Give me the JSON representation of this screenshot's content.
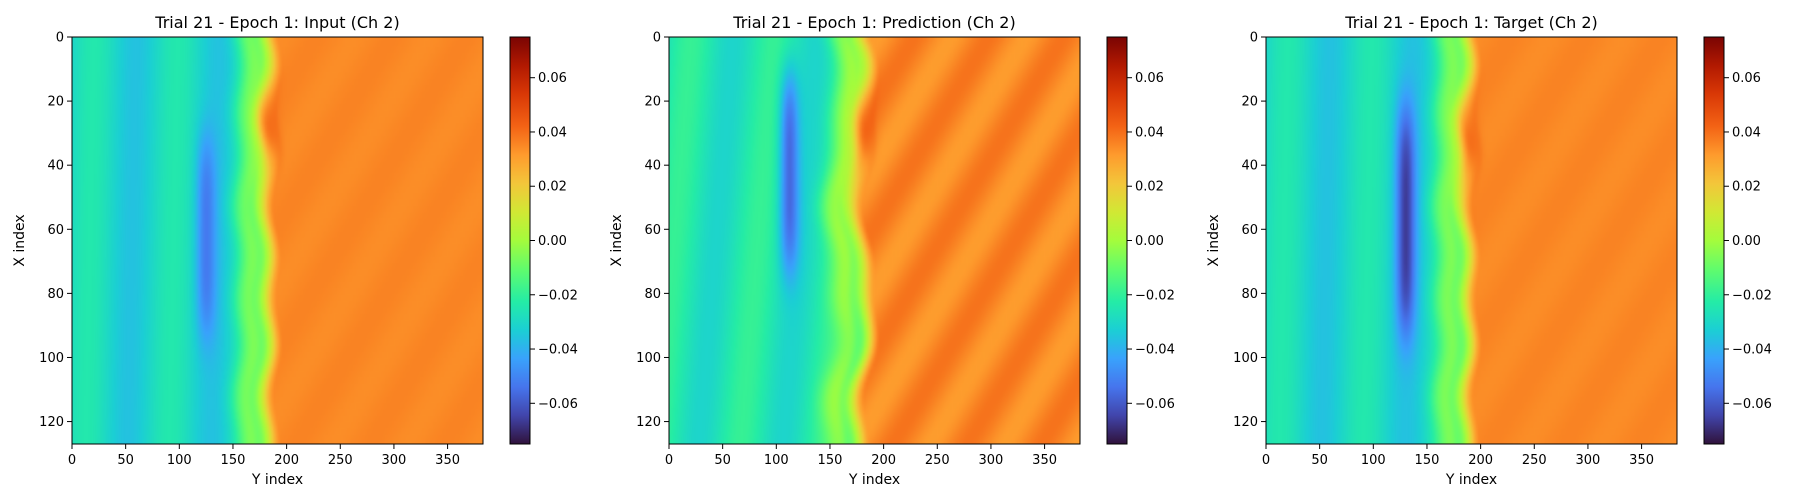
{
  "chart_data": [
    {
      "type": "heatmap",
      "title": "Trial 21 - Epoch 1: Input (Ch 2)",
      "xlabel": "Y index",
      "ylabel": "X index",
      "xlim": [
        0,
        383
      ],
      "ylim": [
        127,
        0
      ],
      "x_ticks": [
        0,
        50,
        100,
        150,
        200,
        250,
        300,
        350
      ],
      "y_ticks": [
        0,
        20,
        40,
        60,
        80,
        100,
        120
      ],
      "colormap": "turbo",
      "colorbar": {
        "range": [
          -0.075,
          0.075
        ],
        "ticks": [
          "0.06",
          "0.04",
          "0.02",
          "0.00",
          "−0.02",
          "−0.04",
          "−0.06"
        ],
        "tick_values": [
          0.06,
          0.04,
          0.02,
          0.0,
          -0.02,
          -0.04,
          -0.06
        ]
      },
      "field": {
        "front_y": 175,
        "left_value": -0.03,
        "right_value": 0.035,
        "peak_value": 0.065,
        "peak_x": 28,
        "trough_value": -0.055,
        "trough_y": 125,
        "trough_x_span": [
          30,
          95
        ],
        "waviness": 0.25
      }
    },
    {
      "type": "heatmap",
      "title": "Trial 21 - Epoch 1: Prediction (Ch 2)",
      "xlabel": "Y index",
      "ylabel": "X index",
      "xlim": [
        0,
        383
      ],
      "ylim": [
        127,
        0
      ],
      "x_ticks": [
        0,
        50,
        100,
        150,
        200,
        250,
        300,
        350
      ],
      "y_ticks": [
        0,
        20,
        40,
        60,
        80,
        100,
        120
      ],
      "colormap": "turbo",
      "colorbar": {
        "range": [
          -0.075,
          0.075
        ],
        "ticks": [
          "0.06",
          "0.04",
          "0.02",
          "0.00",
          "−0.02",
          "−0.04",
          "−0.06"
        ],
        "tick_values": [
          0.06,
          0.04,
          0.02,
          0.0,
          -0.02,
          -0.04,
          -0.06
        ]
      },
      "field": {
        "front_y": 172,
        "left_value": -0.025,
        "right_value": 0.035,
        "peak_value": 0.065,
        "peak_x": 30,
        "trough_value": -0.06,
        "trough_y": 112,
        "trough_x_span": [
          10,
          75
        ],
        "waviness": 1.0
      }
    },
    {
      "type": "heatmap",
      "title": "Trial 21 - Epoch 1: Target (Ch 2)",
      "xlabel": "Y index",
      "ylabel": "X index",
      "xlim": [
        0,
        383
      ],
      "ylim": [
        127,
        0
      ],
      "x_ticks": [
        0,
        50,
        100,
        150,
        200,
        250,
        300,
        350
      ],
      "y_ticks": [
        0,
        20,
        40,
        60,
        80,
        100,
        120
      ],
      "colormap": "turbo",
      "colorbar": {
        "range": [
          -0.075,
          0.075
        ],
        "ticks": [
          "0.06",
          "0.04",
          "0.02",
          "0.00",
          "−0.02",
          "−0.04",
          "−0.06"
        ],
        "tick_values": [
          0.06,
          0.04,
          0.02,
          0.0,
          -0.02,
          -0.04,
          -0.06
        ]
      },
      "field": {
        "front_y": 180,
        "left_value": -0.03,
        "right_value": 0.035,
        "peak_value": 0.068,
        "peak_x": 33,
        "trough_value": -0.07,
        "trough_y": 130,
        "trough_x_span": [
          20,
          95
        ],
        "waviness": 0.25
      }
    }
  ]
}
